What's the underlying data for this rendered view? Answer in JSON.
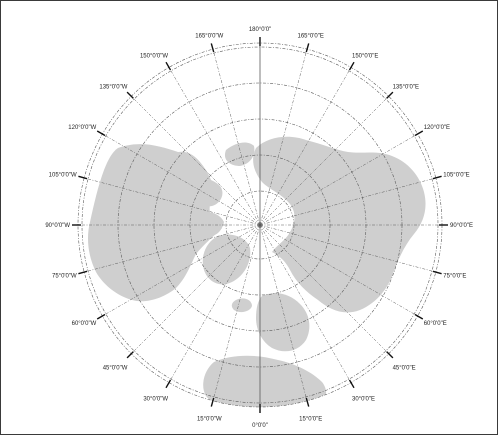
{
  "map": {
    "projection": "north-polar-azimuthal",
    "colors": {
      "land": "#cfcfcf",
      "graticule": "#5a5a5a",
      "frame": "#3a3a3a",
      "label": "#222222"
    },
    "meridian_labels": [
      {
        "deg": 0,
        "text": "180°0'0\""
      },
      {
        "deg": 15,
        "text": "165°0'0\"E"
      },
      {
        "deg": 30,
        "text": "150°0'0\"E"
      },
      {
        "deg": 45,
        "text": "135°0'0\"E"
      },
      {
        "deg": 60,
        "text": "120°0'0\"E"
      },
      {
        "deg": 75,
        "text": "105°0'0\"E"
      },
      {
        "deg": 90,
        "text": "90°0'0\"E"
      },
      {
        "deg": 105,
        "text": "75°0'0\"E"
      },
      {
        "deg": 120,
        "text": "60°0'0\"E"
      },
      {
        "deg": 135,
        "text": "45°0'0\"E"
      },
      {
        "deg": 150,
        "text": "30°0'0\"E"
      },
      {
        "deg": 165,
        "text": "15°0'0\"E"
      },
      {
        "deg": 180,
        "text": "0°0'0\""
      },
      {
        "deg": 195,
        "text": "15°0'0\"W"
      },
      {
        "deg": 210,
        "text": "30°0'0\"W"
      },
      {
        "deg": 225,
        "text": "45°0'0\"W"
      },
      {
        "deg": 240,
        "text": "60°0'0\"W"
      },
      {
        "deg": 255,
        "text": "75°0'0\"W"
      },
      {
        "deg": 270,
        "text": "90°0'0\"W"
      },
      {
        "deg": 285,
        "text": "105°0'0\"W"
      },
      {
        "deg": 300,
        "text": "120°0'0\"W"
      },
      {
        "deg": 315,
        "text": "135°0'0\"W"
      },
      {
        "deg": 330,
        "text": "150°0'0\"W"
      },
      {
        "deg": 345,
        "text": "165°0'0\"W"
      }
    ]
  }
}
